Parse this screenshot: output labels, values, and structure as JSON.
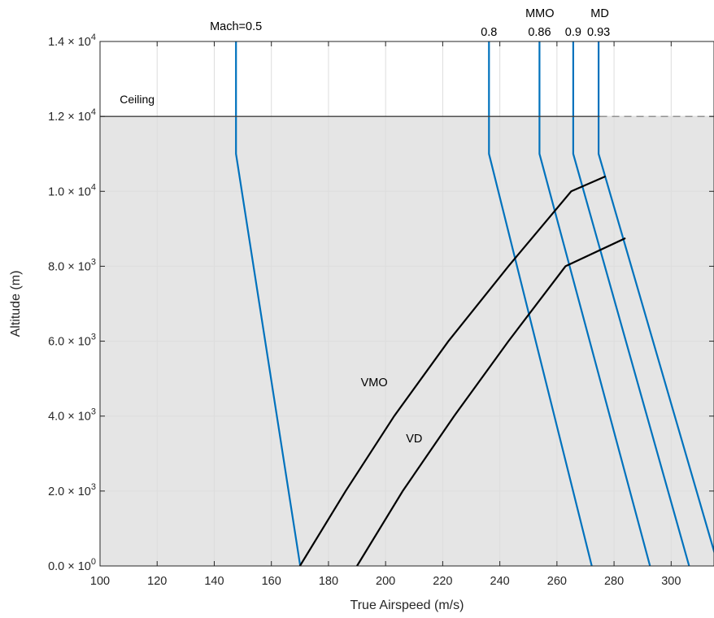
{
  "chart_data": {
    "type": "line",
    "xlabel": "True Airspeed (m/s)",
    "ylabel": "Altitude (m)",
    "xlim": [
      100,
      315
    ],
    "ylim": [
      0,
      14000
    ],
    "grid": true,
    "x_ticks": [
      {
        "value": 100,
        "label": "100"
      },
      {
        "value": 120,
        "label": "120"
      },
      {
        "value": 140,
        "label": "140"
      },
      {
        "value": 160,
        "label": "160"
      },
      {
        "value": 180,
        "label": "180"
      },
      {
        "value": 200,
        "label": "200"
      },
      {
        "value": 220,
        "label": "220"
      },
      {
        "value": 240,
        "label": "240"
      },
      {
        "value": 260,
        "label": "260"
      },
      {
        "value": 280,
        "label": "280"
      },
      {
        "value": 300,
        "label": "300"
      }
    ],
    "y_ticks": [
      {
        "value": 0,
        "mantissa": "0.0",
        "exp": "0"
      },
      {
        "value": 2000,
        "mantissa": "2.0",
        "exp": "3"
      },
      {
        "value": 4000,
        "mantissa": "4.0",
        "exp": "3"
      },
      {
        "value": 6000,
        "mantissa": "6.0",
        "exp": "3"
      },
      {
        "value": 8000,
        "mantissa": "8.0",
        "exp": "3"
      },
      {
        "value": 10000,
        "mantissa": "1.0",
        "exp": "4"
      },
      {
        "value": 12000,
        "mantissa": "1.2",
        "exp": "4"
      },
      {
        "value": 14000,
        "mantissa": "1.4",
        "exp": "4"
      }
    ],
    "ceiling": {
      "label": "Ceiling",
      "altitude": 12000
    },
    "colors": {
      "mach": "#0072BD",
      "speed": "#000000",
      "shade": "#e5e5e5",
      "grid": "#dddddd"
    },
    "mach_series": [
      {
        "label": "Mach=0.5",
        "points": [
          [
            170.1,
            0
          ],
          [
            147.6,
            11000
          ],
          [
            147.6,
            14000
          ]
        ]
      },
      {
        "label": "0.8",
        "points": [
          [
            272.2,
            0
          ],
          [
            236.2,
            11000
          ],
          [
            236.2,
            14000
          ]
        ]
      },
      {
        "label": "0.86",
        "points": [
          [
            292.6,
            0
          ],
          [
            253.9,
            11000
          ],
          [
            253.9,
            14000
          ]
        ]
      },
      {
        "label": "0.9",
        "points": [
          [
            306.3,
            0
          ],
          [
            265.7,
            11000
          ],
          [
            265.7,
            14000
          ]
        ]
      },
      {
        "label": "0.93",
        "points": [
          [
            316.5,
            0
          ],
          [
            274.6,
            11000
          ],
          [
            274.6,
            14000
          ]
        ]
      }
    ],
    "mach_group_labels": [
      {
        "text": "MMO",
        "x": 254
      },
      {
        "text": "MD",
        "x": 275
      }
    ],
    "speed_series": [
      {
        "label": "VMO",
        "label_at": [
          196,
          4800
        ],
        "points": [
          [
            170,
            0
          ],
          [
            186,
            2000
          ],
          [
            203,
            4000
          ],
          [
            222,
            6000
          ],
          [
            243,
            8000
          ],
          [
            265,
            10000
          ],
          [
            277,
            10400
          ]
        ]
      },
      {
        "label": "VD",
        "label_at": [
          210,
          3300
        ],
        "points": [
          [
            190,
            0
          ],
          [
            206,
            2000
          ],
          [
            224,
            4000
          ],
          [
            243,
            6000
          ],
          [
            263,
            8000
          ],
          [
            284,
            8750
          ]
        ]
      }
    ]
  }
}
